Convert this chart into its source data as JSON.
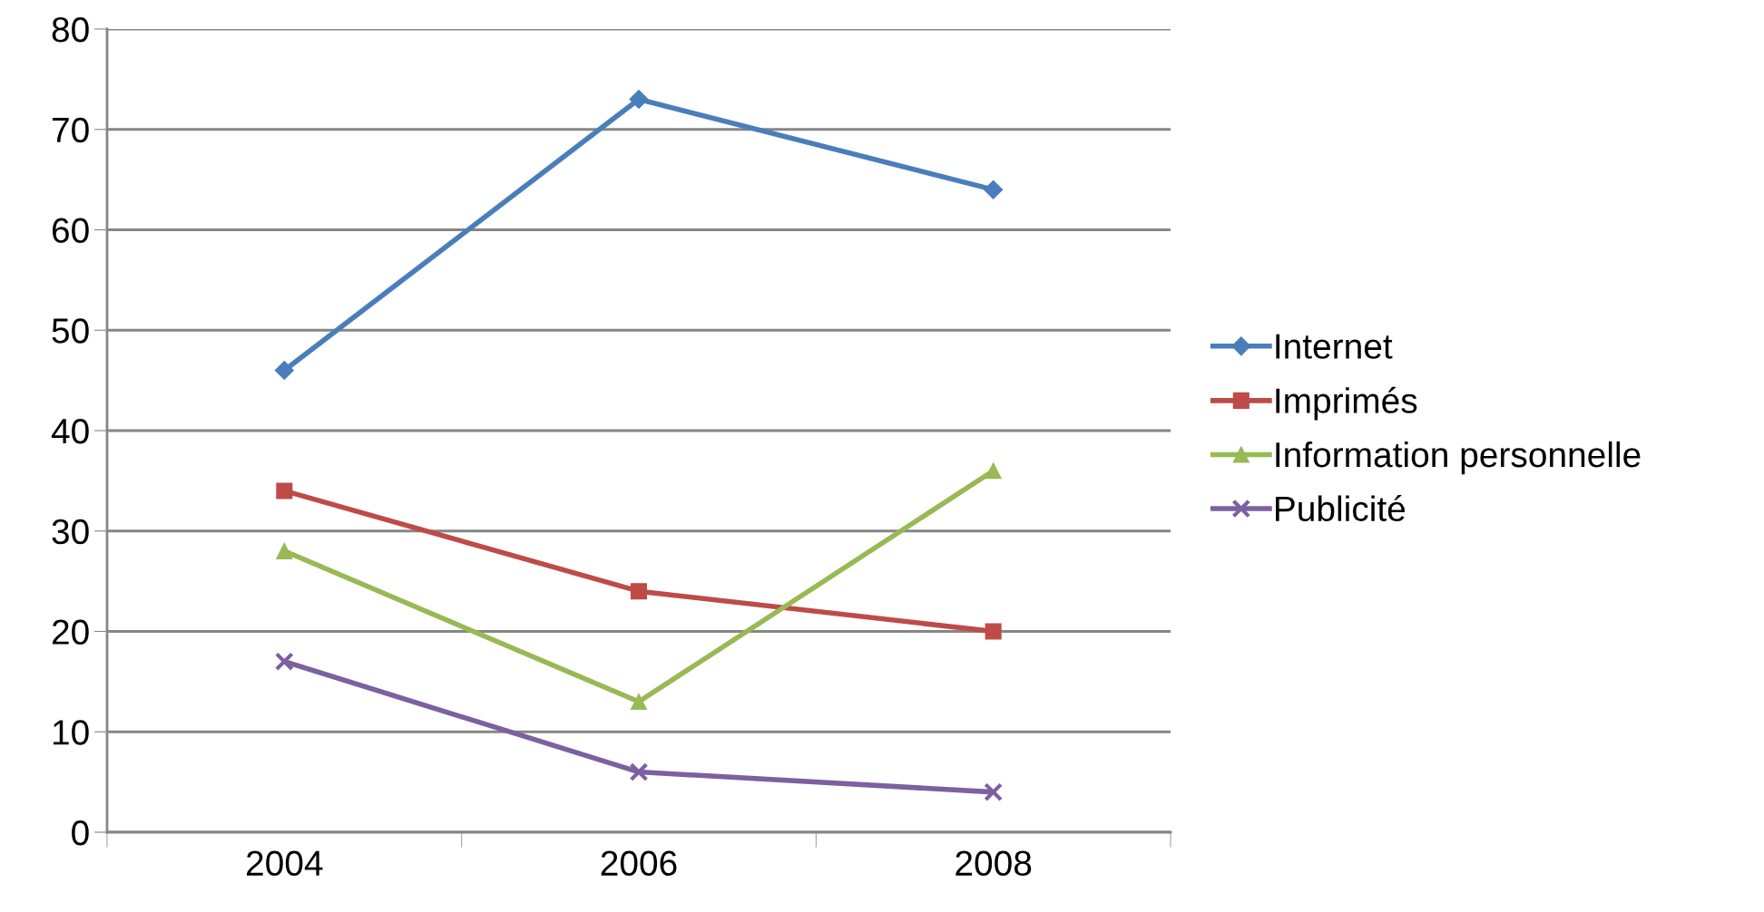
{
  "chart_data": {
    "type": "line",
    "categories": [
      "2004",
      "2006",
      "2008"
    ],
    "series": [
      {
        "name": "Internet",
        "color": "#4a7ebb",
        "marker": "diamond",
        "values": [
          46,
          73,
          64
        ]
      },
      {
        "name": "Imprimés",
        "color": "#be4b48",
        "marker": "square",
        "values": [
          34,
          24,
          20
        ]
      },
      {
        "name": "Information personnelle",
        "color": "#98b954",
        "marker": "triangle",
        "values": [
          28,
          13,
          36
        ]
      },
      {
        "name": "Publicité",
        "color": "#7d60a0",
        "marker": "cross",
        "values": [
          17,
          6,
          4
        ]
      }
    ],
    "ylim": [
      0,
      80
    ],
    "yticks": [
      0,
      10,
      20,
      30,
      40,
      50,
      60,
      70,
      80
    ],
    "grid": "y",
    "legend": "right",
    "line_style": "solid"
  }
}
